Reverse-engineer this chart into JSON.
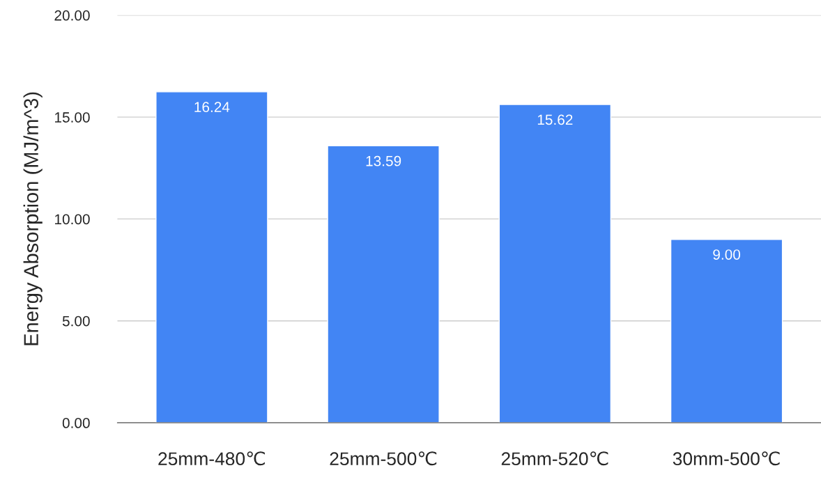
{
  "chart_data": {
    "type": "bar",
    "ylabel": "Energy Absorption (MJ/m^3)",
    "categories": [
      "25mm-480℃",
      "25mm-500℃",
      "25mm-520℃",
      "30mm-500℃"
    ],
    "values": [
      16.24,
      13.59,
      15.62,
      9.0
    ],
    "color": "#4285f4",
    "data_labels": true,
    "value_labels": [
      "16.24",
      "13.59",
      "15.62",
      "9.00"
    ],
    "ylim": [
      0,
      20
    ],
    "yticks": [
      {
        "value": 0,
        "label": "0.00"
      },
      {
        "value": 5,
        "label": "5.00"
      },
      {
        "value": 10,
        "label": "10.00"
      },
      {
        "value": 15,
        "label": "15.00"
      },
      {
        "value": 20,
        "label": "20.00"
      }
    ],
    "grid": "y",
    "legend": false
  }
}
